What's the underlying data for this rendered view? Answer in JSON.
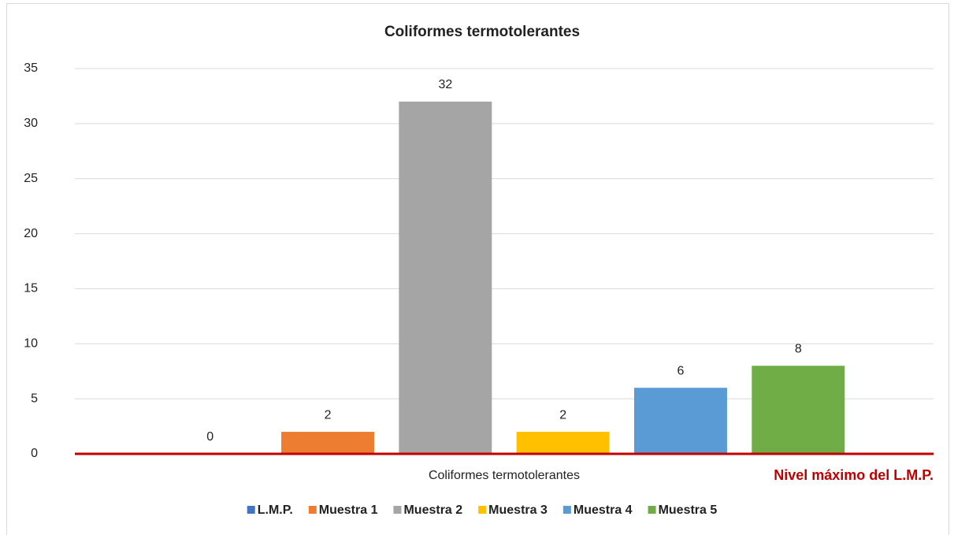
{
  "chart_data": {
    "type": "bar",
    "title": "Coliformes termotolerantes",
    "categories": [
      "Coliformes termotolerantes"
    ],
    "series": [
      {
        "name": "L.M.P.",
        "color": "#4472c4",
        "values": [
          0
        ]
      },
      {
        "name": "Muestra 1",
        "color": "#ed7d31",
        "values": [
          2
        ]
      },
      {
        "name": "Muestra 2",
        "color": "#a5a5a5",
        "values": [
          32
        ]
      },
      {
        "name": "Muestra 3",
        "color": "#ffc000",
        "values": [
          2
        ]
      },
      {
        "name": "Muestra 4",
        "color": "#5b9bd5",
        "values": [
          6
        ]
      },
      {
        "name": "Muestra 5",
        "color": "#70ad47",
        "values": [
          8
        ]
      }
    ],
    "ylim": [
      0,
      35
    ],
    "yticks": [
      0,
      5,
      10,
      15,
      20,
      25,
      30,
      35
    ],
    "grid": true,
    "limit_line": {
      "value": 0,
      "label": "Nivel máximo del L.M.P.",
      "color": "#c00000"
    },
    "legend": "bottom"
  }
}
